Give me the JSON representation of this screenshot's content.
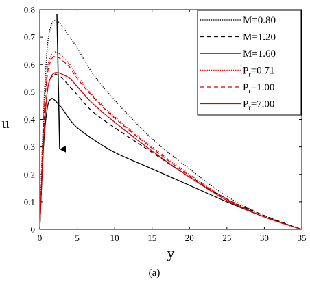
{
  "chart_data": {
    "type": "line",
    "xlabel": "y",
    "ylabel": "u",
    "caption": "(a)",
    "xlim": [
      0,
      35
    ],
    "ylim": [
      0,
      0.8
    ],
    "xticks": [
      "0",
      "5",
      "10",
      "15",
      "20",
      "25",
      "30",
      "35"
    ],
    "yticks": [
      "0",
      "0.1",
      "0.2",
      "0.3",
      "0.4",
      "0.5",
      "0.6",
      "0.7",
      "0.8"
    ],
    "grid": false,
    "legend_position": "top-right",
    "annotation": "arrow pointing down across the curve peaks near y=2",
    "series": [
      {
        "name": "M=0.80",
        "color": "#000000",
        "dash": "dotted",
        "x": [
          0,
          0.5,
          1,
          1.5,
          2,
          2.5,
          3,
          4,
          5,
          7,
          10,
          15,
          20,
          25,
          30,
          35
        ],
        "y": [
          0,
          0.42,
          0.66,
          0.74,
          0.76,
          0.755,
          0.74,
          0.7,
          0.66,
          0.57,
          0.47,
          0.33,
          0.22,
          0.12,
          0.05,
          0
        ]
      },
      {
        "name": "M=1.20",
        "color": "#000000",
        "dash": "dashed",
        "x": [
          0,
          0.5,
          1,
          1.5,
          2,
          2.5,
          3,
          4,
          5,
          7,
          10,
          15,
          20,
          25,
          30,
          35
        ],
        "y": [
          0,
          0.34,
          0.5,
          0.55,
          0.565,
          0.56,
          0.55,
          0.52,
          0.49,
          0.43,
          0.37,
          0.28,
          0.19,
          0.11,
          0.05,
          0
        ]
      },
      {
        "name": "M=1.60",
        "color": "#000000",
        "dash": "solid",
        "x": [
          0,
          0.5,
          1,
          1.5,
          2,
          2.5,
          3,
          4,
          5,
          7,
          10,
          15,
          20,
          25,
          30,
          35
        ],
        "y": [
          0,
          0.3,
          0.44,
          0.475,
          0.47,
          0.455,
          0.44,
          0.4,
          0.37,
          0.33,
          0.28,
          0.22,
          0.16,
          0.1,
          0.045,
          0
        ]
      },
      {
        "name": "Pr=0.71",
        "color": "#d40000",
        "dash": "dotted",
        "x": [
          0,
          0.5,
          1,
          1.5,
          2,
          2.5,
          3,
          4,
          5,
          7,
          10,
          15,
          20,
          25,
          30,
          35
        ],
        "y": [
          0,
          0.4,
          0.58,
          0.63,
          0.645,
          0.64,
          0.63,
          0.6,
          0.56,
          0.49,
          0.41,
          0.3,
          0.2,
          0.11,
          0.045,
          0
        ]
      },
      {
        "name": "Pr=1.00",
        "color": "#d40000",
        "dash": "dashed",
        "x": [
          0,
          0.5,
          1,
          1.5,
          2,
          2.5,
          3,
          4,
          5,
          7,
          10,
          15,
          20,
          25,
          30,
          35
        ],
        "y": [
          0,
          0.38,
          0.56,
          0.615,
          0.63,
          0.625,
          0.615,
          0.59,
          0.55,
          0.485,
          0.405,
          0.295,
          0.195,
          0.11,
          0.045,
          0
        ]
      },
      {
        "name": "Pr=7.00",
        "color": "#d40000",
        "dash": "solid",
        "x": [
          0,
          0.5,
          1,
          1.5,
          2,
          2.5,
          3,
          4,
          5,
          7,
          10,
          15,
          20,
          25,
          30,
          35
        ],
        "y": [
          0,
          0.32,
          0.5,
          0.555,
          0.57,
          0.57,
          0.565,
          0.55,
          0.52,
          0.46,
          0.39,
          0.285,
          0.19,
          0.105,
          0.045,
          0
        ]
      }
    ]
  }
}
